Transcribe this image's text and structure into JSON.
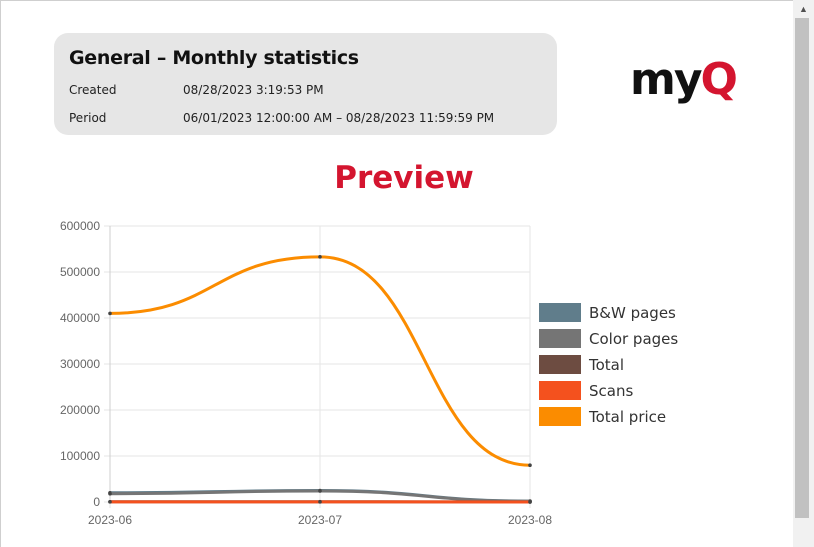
{
  "report": {
    "title": "General – Monthly statistics",
    "created_label": "Created",
    "created_value": "08/28/2023 3:19:53 PM",
    "period_label": "Period",
    "period_value": "06/01/2023 12:00:00 AM – 08/28/2023 11:59:59 PM"
  },
  "logo": {
    "text_main": "my",
    "text_accent": "Q",
    "icon": "myq-logo"
  },
  "preview_title": "Preview",
  "colors": {
    "accent": "#d4152f",
    "bw": "#607d8b",
    "color_pages": "#757575",
    "total": "#6d4c41",
    "scans": "#f4511e",
    "total_price": "#fb8c00"
  },
  "chart_data": {
    "type": "line",
    "categories": [
      "2023-06",
      "2023-07",
      "2023-08"
    ],
    "ylim": [
      0,
      600000
    ],
    "yticks": [
      "0",
      "100000",
      "200000",
      "300000",
      "400000",
      "500000",
      "600000"
    ],
    "grid": true,
    "legend_position": "right",
    "series": [
      {
        "name": "B&W pages",
        "values": [
          20000,
          25000,
          2000
        ],
        "color": "#607d8b"
      },
      {
        "name": "Color pages",
        "values": [
          18000,
          24000,
          1500
        ],
        "color": "#757575"
      },
      {
        "name": "Total",
        "values": [
          500,
          600,
          100
        ],
        "color": "#6d4c41"
      },
      {
        "name": "Scans",
        "values": [
          300,
          400,
          50
        ],
        "color": "#f4511e"
      },
      {
        "name": "Total price",
        "values": [
          410000,
          533000,
          80000
        ],
        "color": "#fb8c00"
      }
    ]
  },
  "scrollbar": {
    "up_icon": "chevron-up-icon"
  }
}
